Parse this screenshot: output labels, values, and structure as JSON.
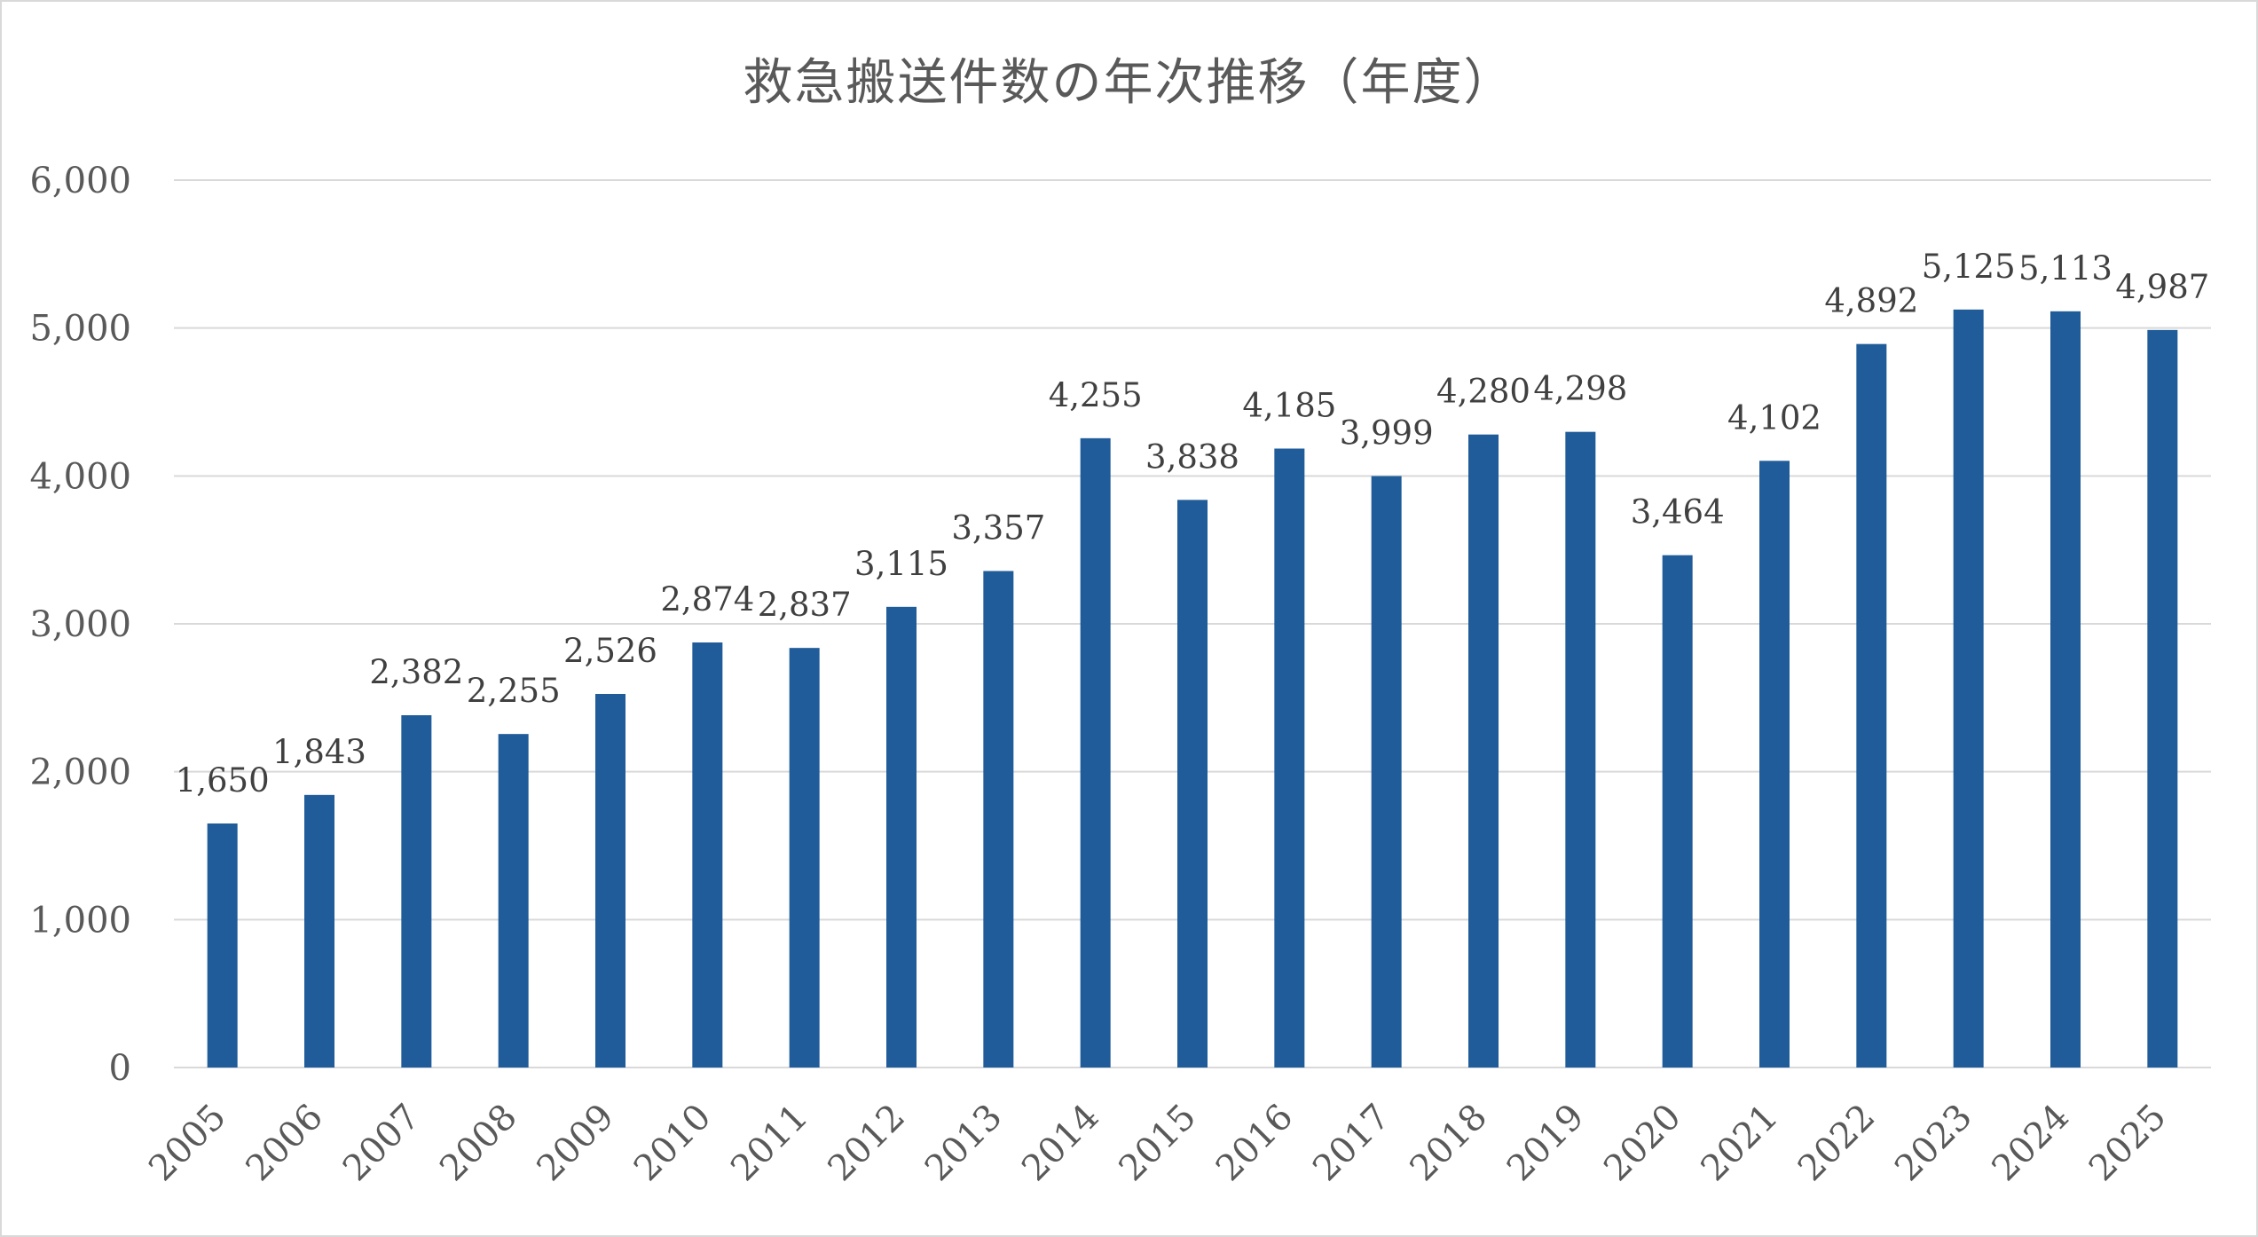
{
  "chart_data": {
    "type": "bar",
    "title": "救急搬送件数の年次推移（年度）",
    "categories": [
      "2005",
      "2006",
      "2007",
      "2008",
      "2009",
      "2010",
      "2011",
      "2012",
      "2013",
      "2014",
      "2015",
      "2016",
      "2017",
      "2018",
      "2019",
      "2020",
      "2021",
      "2022",
      "2023",
      "2024",
      "2025"
    ],
    "values": [
      1650,
      1843,
      2382,
      2255,
      2526,
      2874,
      2837,
      3115,
      3357,
      4255,
      3838,
      4185,
      3999,
      4280,
      4298,
      3464,
      4102,
      4892,
      5125,
      5113,
      4987
    ],
    "data_labels": [
      "1,650",
      "1,843",
      "2,382",
      "2,255",
      "2,526",
      "2,874",
      "2,837",
      "3,115",
      "3,357",
      "4,255",
      "3,838",
      "4,185",
      "3,999",
      "4,280",
      "4,298",
      "3,464",
      "4,102",
      "4,892",
      "5,125",
      "5,113",
      "4,987"
    ],
    "y_ticks": [
      0,
      1000,
      2000,
      3000,
      4000,
      5000,
      6000
    ],
    "y_tick_labels": [
      "0",
      "1,000",
      "2,000",
      "3,000",
      "4,000",
      "5,000",
      "6,000"
    ],
    "ylim": [
      0,
      6000
    ],
    "xlabel": "",
    "ylabel": "",
    "grid": true,
    "legend": "none",
    "colors": {
      "bar": "#1f5c99",
      "grid": "#d9d9d9",
      "text": "#595959",
      "data_label": "#404040"
    }
  }
}
